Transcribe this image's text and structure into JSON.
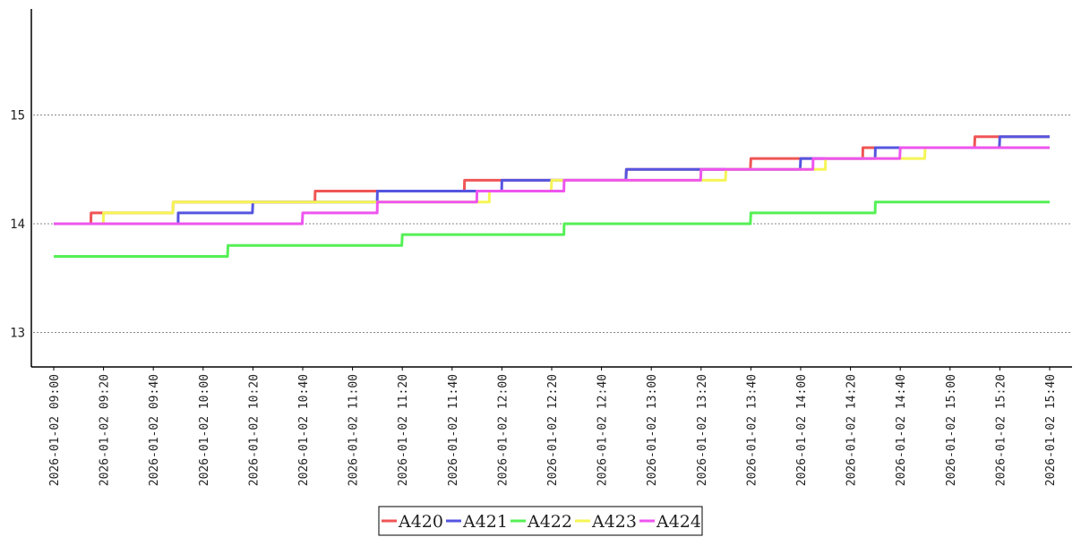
{
  "chart_data": {
    "type": "line",
    "x": [
      "09:00",
      "09:10",
      "09:15",
      "09:20",
      "09:30",
      "09:40",
      "09:48",
      "09:50",
      "10:00",
      "10:10",
      "10:20",
      "10:30",
      "10:40",
      "10:45",
      "11:00",
      "11:05",
      "11:10",
      "11:20",
      "11:30",
      "11:40",
      "11:45",
      "11:50",
      "11:55",
      "12:00",
      "12:10",
      "12:20",
      "12:25",
      "12:30",
      "12:40",
      "12:50",
      "13:00",
      "13:10",
      "13:20",
      "13:30",
      "13:40",
      "13:50",
      "14:00",
      "14:05",
      "14:10",
      "14:20",
      "14:25",
      "14:30",
      "14:40",
      "14:50",
      "15:00",
      "15:10",
      "15:20",
      "15:30",
      "15:40"
    ],
    "x_dates": [
      "2026-01-02 09:00",
      "2026-01-02 09:10",
      "2026-01-02 09:15",
      "2026-01-02 09:20",
      "2026-01-02 09:30",
      "2026-01-02 09:40",
      "2026-01-02 09:48",
      "2026-01-02 09:50",
      "2026-01-02 10:00",
      "2026-01-02 10:10",
      "2026-01-02 10:20",
      "2026-01-02 10:30",
      "2026-01-02 10:40",
      "2026-01-02 10:45",
      "2026-01-02 11:00",
      "2026-01-02 11:05",
      "2026-01-02 11:10",
      "2026-01-02 11:20",
      "2026-01-02 11:30",
      "2026-01-02 11:40",
      "2026-01-02 11:45",
      "2026-01-02 11:50",
      "2026-01-02 11:55",
      "2026-01-02 12:00",
      "2026-01-02 12:10",
      "2026-01-02 12:20",
      "2026-01-02 12:25",
      "2026-01-02 12:30",
      "2026-01-02 12:40",
      "2026-01-02 12:50",
      "2026-01-02 13:00",
      "2026-01-02 13:10",
      "2026-01-02 13:20",
      "2026-01-02 13:30",
      "2026-01-02 13:40",
      "2026-01-02 13:50",
      "2026-01-02 14:00",
      "2026-01-02 14:05",
      "2026-01-02 14:10",
      "2026-01-02 14:20",
      "2026-01-02 14:25",
      "2026-01-02 14:30",
      "2026-01-02 14:40",
      "2026-01-02 14:50",
      "2026-01-02 15:00",
      "2026-01-02 15:10",
      "2026-01-02 15:20",
      "2026-01-02 15:30",
      "2026-01-02 15:40"
    ],
    "series": [
      {
        "name": "A420",
        "color": "#f05555",
        "values": [
          14.0,
          14.0,
          14.1,
          14.1,
          14.1,
          14.1,
          14.2,
          14.2,
          14.2,
          14.2,
          14.2,
          14.2,
          14.2,
          14.3,
          14.3,
          14.3,
          14.3,
          14.3,
          14.3,
          14.3,
          14.4,
          14.4,
          14.4,
          14.4,
          14.4,
          14.4,
          14.4,
          14.4,
          14.4,
          14.5,
          14.5,
          14.5,
          14.5,
          14.5,
          14.6,
          14.6,
          14.6,
          14.6,
          14.6,
          14.6,
          14.7,
          14.7,
          14.7,
          14.7,
          14.7,
          14.8,
          14.8,
          14.8,
          14.8
        ]
      },
      {
        "name": "A421",
        "color": "#5555e0",
        "values": [
          14.0,
          14.0,
          14.0,
          14.0,
          14.0,
          14.0,
          14.0,
          14.1,
          14.1,
          14.1,
          14.2,
          14.2,
          14.2,
          14.2,
          14.2,
          14.2,
          14.3,
          14.3,
          14.3,
          14.3,
          14.3,
          14.3,
          14.3,
          14.4,
          14.4,
          14.4,
          14.4,
          14.4,
          14.4,
          14.5,
          14.5,
          14.5,
          14.5,
          14.5,
          14.5,
          14.5,
          14.6,
          14.6,
          14.6,
          14.6,
          14.6,
          14.7,
          14.7,
          14.7,
          14.7,
          14.7,
          14.8,
          14.8,
          14.8
        ]
      },
      {
        "name": "A422",
        "color": "#55f055",
        "values": [
          13.7,
          13.7,
          13.7,
          13.7,
          13.7,
          13.7,
          13.7,
          13.7,
          13.7,
          13.8,
          13.8,
          13.8,
          13.8,
          13.8,
          13.8,
          13.8,
          13.8,
          13.9,
          13.9,
          13.9,
          13.9,
          13.9,
          13.9,
          13.9,
          13.9,
          13.9,
          14.0,
          14.0,
          14.0,
          14.0,
          14.0,
          14.0,
          14.0,
          14.0,
          14.1,
          14.1,
          14.1,
          14.1,
          14.1,
          14.1,
          14.1,
          14.2,
          14.2,
          14.2,
          14.2,
          14.2,
          14.2,
          14.2,
          14.2
        ]
      },
      {
        "name": "A423",
        "color": "#f5f555",
        "values": [
          14.0,
          14.0,
          14.0,
          14.1,
          14.1,
          14.1,
          14.2,
          14.2,
          14.2,
          14.2,
          14.2,
          14.2,
          14.2,
          14.2,
          14.2,
          14.2,
          14.2,
          14.2,
          14.2,
          14.2,
          14.2,
          14.2,
          14.3,
          14.3,
          14.3,
          14.4,
          14.4,
          14.4,
          14.4,
          14.4,
          14.4,
          14.4,
          14.4,
          14.5,
          14.5,
          14.5,
          14.5,
          14.5,
          14.6,
          14.6,
          14.6,
          14.6,
          14.6,
          14.7,
          14.7,
          14.7,
          14.7,
          14.7,
          14.7
        ]
      },
      {
        "name": "A424",
        "color": "#ee55ee",
        "values": [
          14.0,
          14.0,
          14.0,
          14.0,
          14.0,
          14.0,
          14.0,
          14.0,
          14.0,
          14.0,
          14.0,
          14.0,
          14.1,
          14.1,
          14.1,
          14.1,
          14.2,
          14.2,
          14.2,
          14.2,
          14.2,
          14.3,
          14.3,
          14.3,
          14.3,
          14.3,
          14.4,
          14.4,
          14.4,
          14.4,
          14.4,
          14.4,
          14.5,
          14.5,
          14.5,
          14.5,
          14.5,
          14.6,
          14.6,
          14.6,
          14.6,
          14.6,
          14.7,
          14.7,
          14.7,
          14.7,
          14.7,
          14.7,
          14.7
        ]
      }
    ],
    "title": "",
    "xlabel": "",
    "ylabel": "",
    "ylim": [
      12.7,
      15.9
    ],
    "xlim": [
      "2026-01-02 09:00",
      "2026-01-02 15:40"
    ],
    "yticks": [
      13,
      14,
      15
    ],
    "xticks": [
      "2026-01-02 09:00",
      "2026-01-02 09:20",
      "2026-01-02 09:40",
      "2026-01-02 10:00",
      "2026-01-02 10:20",
      "2026-01-02 10:40",
      "2026-01-02 11:00",
      "2026-01-02 11:20",
      "2026-01-02 11:40",
      "2026-01-02 12:00",
      "2026-01-02 12:20",
      "2026-01-02 12:40",
      "2026-01-02 13:00",
      "2026-01-02 13:20",
      "2026-01-02 13:40",
      "2026-01-02 14:00",
      "2026-01-02 14:20",
      "2026-01-02 14:40",
      "2026-01-02 15:00",
      "2026-01-02 15:20",
      "2026-01-02 15:40"
    ],
    "grid": "horizontal dotted",
    "legend": "bottom-center",
    "step": true
  }
}
